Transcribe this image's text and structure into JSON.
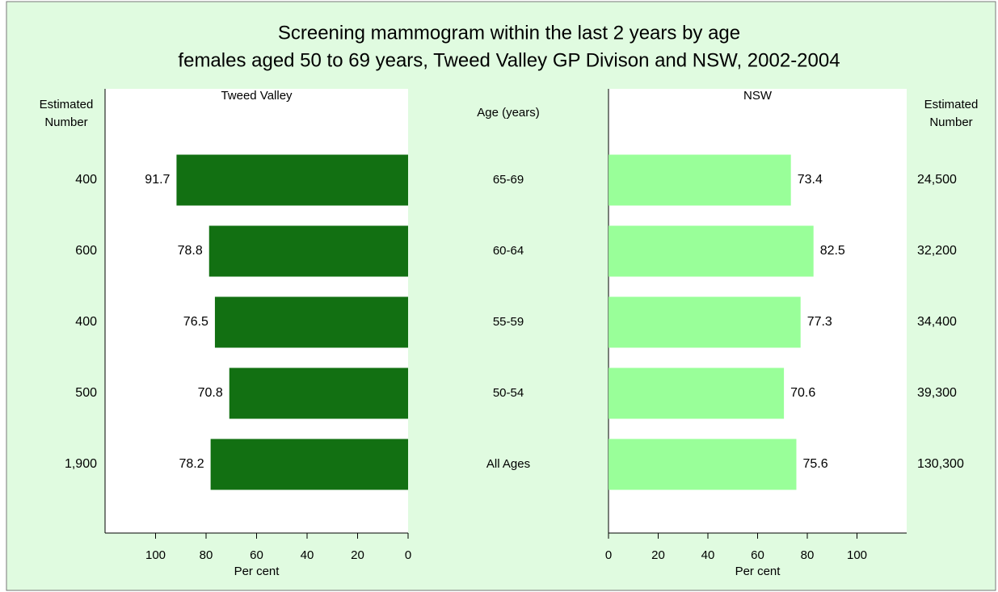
{
  "chart_data": {
    "type": "bar",
    "orientation": "horizontal",
    "title": [
      "Screening mammogram within the last 2 years by age",
      "females aged 50 to 69 years, Tweed Valley GP Divison and NSW, 2002-2004"
    ],
    "category_label": "Age (years)",
    "categories": [
      "65-69",
      "60-64",
      "55-59",
      "50-54",
      "All Ages"
    ],
    "count_label": [
      "Estimated",
      "Number"
    ],
    "xlabel": "Per cent",
    "xlim": [
      0,
      120
    ],
    "xticks": [
      0,
      20,
      40,
      60,
      80,
      100
    ],
    "series": [
      {
        "name": "Tweed Valley",
        "color": "#127012",
        "reversed": true,
        "values": [
          91.7,
          78.8,
          76.5,
          70.8,
          78.2
        ],
        "counts": [
          "400",
          "600",
          "400",
          "500",
          "1,900"
        ]
      },
      {
        "name": "NSW",
        "color": "#99ff99",
        "reversed": false,
        "values": [
          73.4,
          82.5,
          77.3,
          70.6,
          75.6
        ],
        "counts": [
          "24,500",
          "32,200",
          "34,400",
          "39,300",
          "130,300"
        ]
      }
    ]
  }
}
